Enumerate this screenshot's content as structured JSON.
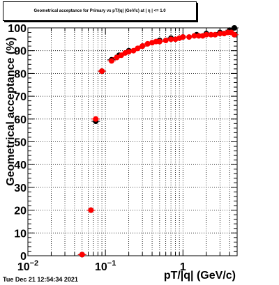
{
  "title": "Geometrical acceptance for Primary vs pT/|q| (GeV/c) at | η | <= 1.0",
  "timestamp": "Tue Dec 21 12:54:34 2021",
  "chart_data": {
    "type": "scatter",
    "title": "Geometrical acceptance for Primary vs pT/|q| (GeV/c) at | η | <= 1.0",
    "xlabel": "pT/|q| (GeV/c)",
    "ylabel": "Geometrical acceptance (%)",
    "xscale": "log",
    "xlim": [
      0.01,
      5
    ],
    "ylim": [
      0,
      100
    ],
    "grid": true,
    "x_ticks": [
      {
        "value": 0.01,
        "base": "10",
        "exp": "−2"
      },
      {
        "value": 0.1,
        "base": "10",
        "exp": "−1"
      },
      {
        "value": 1,
        "base": "1",
        "exp": ""
      }
    ],
    "y_ticks": [
      0,
      10,
      20,
      30,
      40,
      50,
      60,
      70,
      80,
      90,
      100
    ],
    "series": [
      {
        "color": "#000000",
        "points": [
          [
            0.05,
            0.5
          ],
          [
            0.065,
            20
          ],
          [
            0.075,
            59
          ],
          [
            0.09,
            81
          ],
          [
            0.12,
            86
          ],
          [
            0.15,
            88
          ],
          [
            0.2,
            90
          ],
          [
            0.3,
            92
          ],
          [
            0.5,
            94.5
          ],
          [
            0.7,
            95.5
          ],
          [
            1.0,
            96
          ],
          [
            1.5,
            97
          ],
          [
            2.0,
            97.5
          ],
          [
            3.0,
            98
          ],
          [
            4.0,
            99
          ],
          [
            4.6,
            100
          ]
        ]
      },
      {
        "color": "#ff0000",
        "points": [
          [
            0.05,
            0.5
          ],
          [
            0.065,
            20
          ],
          [
            0.075,
            60
          ],
          [
            0.09,
            81
          ],
          [
            0.12,
            85.5
          ],
          [
            0.14,
            87
          ],
          [
            0.16,
            88
          ],
          [
            0.18,
            89
          ],
          [
            0.2,
            89.5
          ],
          [
            0.23,
            90
          ],
          [
            0.26,
            91
          ],
          [
            0.3,
            92
          ],
          [
            0.35,
            93
          ],
          [
            0.4,
            93.5
          ],
          [
            0.45,
            94
          ],
          [
            0.5,
            94
          ],
          [
            0.6,
            94.5
          ],
          [
            0.7,
            95
          ],
          [
            0.8,
            95
          ],
          [
            0.9,
            95.5
          ],
          [
            1.0,
            96
          ],
          [
            1.2,
            96
          ],
          [
            1.4,
            96.5
          ],
          [
            1.6,
            96.5
          ],
          [
            1.8,
            96.5
          ],
          [
            2.0,
            97
          ],
          [
            2.3,
            97
          ],
          [
            2.6,
            97
          ],
          [
            3.0,
            97.5
          ],
          [
            3.4,
            97.5
          ],
          [
            3.8,
            98
          ],
          [
            4.2,
            98
          ],
          [
            4.6,
            97
          ]
        ]
      }
    ]
  }
}
